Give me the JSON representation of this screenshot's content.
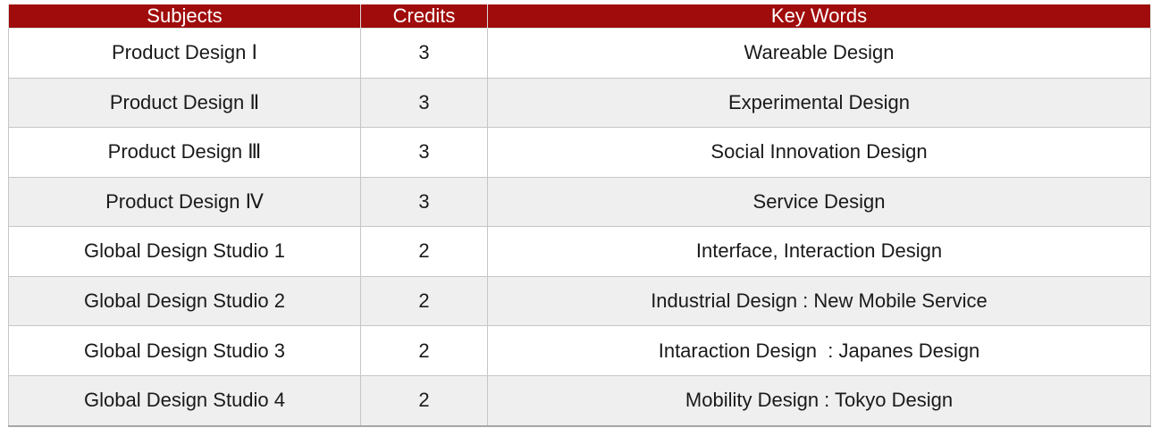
{
  "table": {
    "columns": [
      {
        "key": "subject",
        "label": "Subjects"
      },
      {
        "key": "credits",
        "label": "Credits"
      },
      {
        "key": "keywords",
        "label": "Key Words"
      }
    ],
    "rows": [
      {
        "subject": "Product Design Ⅰ",
        "credits": "3",
        "keywords": "Wareable Design"
      },
      {
        "subject": "Product Design Ⅱ",
        "credits": "3",
        "keywords": "Experimental Design"
      },
      {
        "subject": "Product Design Ⅲ",
        "credits": "3",
        "keywords": "Social Innovation Design"
      },
      {
        "subject": "Product Design Ⅳ",
        "credits": "3",
        "keywords": "Service Design"
      },
      {
        "subject": "Global Design Studio 1",
        "credits": "2",
        "keywords": "Interface, Interaction Design"
      },
      {
        "subject": "Global Design Studio 2",
        "credits": "2",
        "keywords": "Industrial Design : New Mobile Service"
      },
      {
        "subject": "Global Design Studio 3",
        "credits": "2",
        "keywords": "Intaraction Design  : Japanes Design"
      },
      {
        "subject": "Global Design Studio 4",
        "credits": "2",
        "keywords": "Mobility Design : Tokyo Design"
      }
    ],
    "colors": {
      "header_bg": "#A00B0B",
      "header_text": "#FFFFFF",
      "header_border": "#D9D9D9",
      "row_bg": "#FFFFFF",
      "row_alt_bg": "#EFEFEF",
      "border": "#C6C6C6",
      "border_bottom": "#A6A6A6",
      "text": "#1A1A1A"
    }
  }
}
